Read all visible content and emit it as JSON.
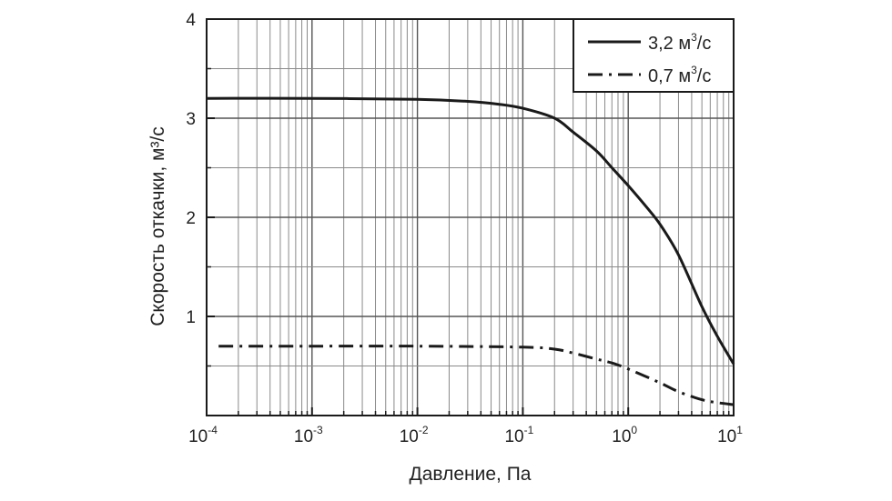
{
  "chart_data": {
    "type": "line",
    "x_scale": "log",
    "xlim": [
      0.0001,
      10
    ],
    "ylim": [
      0,
      4
    ],
    "grid": true,
    "legend_position": "top-right",
    "xlabel": "Давление, Па",
    "ylabel": "Скорость откачки, м³/с",
    "x_ticks": [
      {
        "base": "10",
        "exp": "-4",
        "value": 0.0001
      },
      {
        "base": "10",
        "exp": "-3",
        "value": 0.001
      },
      {
        "base": "10",
        "exp": "-2",
        "value": 0.01
      },
      {
        "base": "10",
        "exp": "-1",
        "value": 0.1
      },
      {
        "base": "10",
        "exp": "0",
        "value": 1
      },
      {
        "base": "10",
        "exp": "1",
        "value": 10
      }
    ],
    "y_ticks": [
      "1",
      "2",
      "3",
      "4"
    ],
    "series": [
      {
        "name": "3,2 м³/с",
        "style": "solid",
        "x": [
          0.0001,
          0.001,
          0.01,
          0.03,
          0.06,
          0.1,
          0.2,
          0.3,
          0.5,
          0.7,
          1,
          1.5,
          2,
          3,
          5,
          7,
          10
        ],
        "y": [
          3.2,
          3.2,
          3.19,
          3.17,
          3.14,
          3.1,
          3.0,
          2.86,
          2.67,
          2.5,
          2.32,
          2.1,
          1.93,
          1.62,
          1.1,
          0.8,
          0.52
        ]
      },
      {
        "name": "0,7 м³/с",
        "style": "dashdot",
        "x": [
          0.00013,
          0.001,
          0.01,
          0.1,
          0.2,
          0.3,
          0.5,
          0.7,
          1,
          2,
          3,
          5,
          7,
          10
        ],
        "y": [
          0.7,
          0.7,
          0.7,
          0.69,
          0.67,
          0.63,
          0.57,
          0.53,
          0.47,
          0.33,
          0.24,
          0.16,
          0.13,
          0.11
        ]
      }
    ]
  },
  "legend": {
    "items": [
      {
        "label": "3,2 м",
        "sup": "3",
        "suffix": "/с",
        "style": "solid"
      },
      {
        "label": "0,7 м",
        "sup": "3",
        "suffix": "/с",
        "style": "dashdot"
      }
    ]
  },
  "colors": {
    "line": "#1a1a1a",
    "grid": "#555555",
    "minor_grid": "#8a8a8a"
  }
}
